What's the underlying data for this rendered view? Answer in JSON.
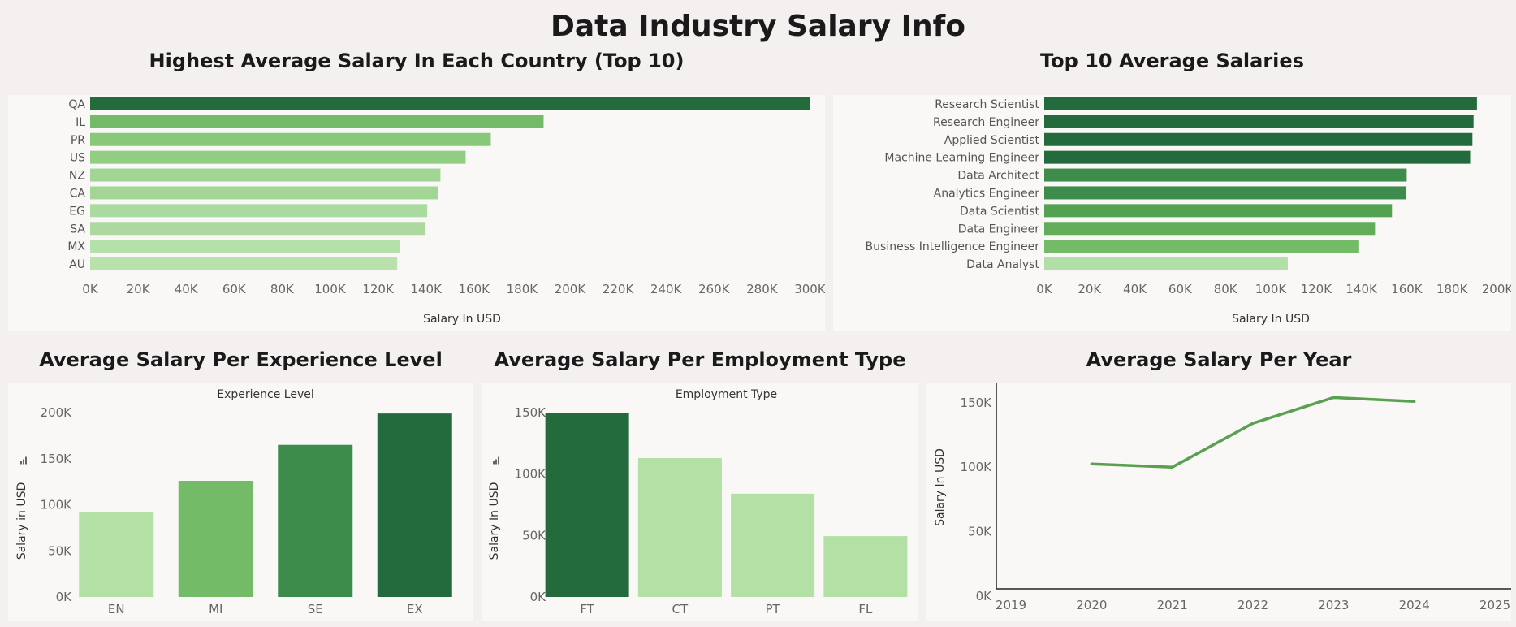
{
  "page": {
    "title": "Data Industry Salary Info"
  },
  "chart_data": [
    {
      "id": "country",
      "type": "bar",
      "orientation": "horizontal",
      "title": "Highest Average Salary In Each Country (Top 10)",
      "xlabel": "Salary In USD",
      "ylabel": "",
      "categories": [
        "QA",
        "IL",
        "PR",
        "US",
        "NZ",
        "CA",
        "EG",
        "SA",
        "MX",
        "AU"
      ],
      "values": [
        300000,
        189000,
        167000,
        156500,
        146000,
        145000,
        140500,
        139500,
        129000,
        128000
      ],
      "xlim": [
        0,
        310000
      ],
      "ticks": [
        "0K",
        "20K",
        "40K",
        "60K",
        "80K",
        "100K",
        "120K",
        "140K",
        "160K",
        "180K",
        "200K",
        "220K",
        "240K",
        "260K",
        "280K",
        "300K"
      ],
      "tick_values": [
        0,
        20000,
        40000,
        60000,
        80000,
        100000,
        120000,
        140000,
        160000,
        180000,
        200000,
        220000,
        240000,
        260000,
        280000,
        300000
      ],
      "colors": [
        "#236b3d",
        "#74bb67",
        "#88c879",
        "#92cd83",
        "#a1d594",
        "#a3d696",
        "#abdaa0",
        "#add9a1",
        "#b6e0aa",
        "#b8e1ab"
      ]
    },
    {
      "id": "jobs",
      "type": "bar",
      "orientation": "horizontal",
      "title": "Top 10 Average Salaries",
      "xlabel": "Salary In USD",
      "ylabel": "",
      "categories": [
        "Research Scientist",
        "Research Engineer",
        "Applied Scientist",
        "Machine Learning Engineer",
        "Data Architect",
        "Analytics Engineer",
        "Data Scientist",
        "Data Engineer",
        "Business Intelligence Engineer",
        "Data Analyst"
      ],
      "values": [
        191000,
        189500,
        189000,
        188000,
        160000,
        159500,
        153500,
        146000,
        139000,
        107500
      ],
      "xlim": [
        0,
        200000
      ],
      "ticks": [
        "0K",
        "20K",
        "40K",
        "60K",
        "80K",
        "100K",
        "120K",
        "140K",
        "160K",
        "180K",
        "200K"
      ],
      "tick_values": [
        0,
        20000,
        40000,
        60000,
        80000,
        100000,
        120000,
        140000,
        160000,
        180000,
        200000
      ],
      "colors": [
        "#236b3d",
        "#236b3d",
        "#236b3d",
        "#236b3d",
        "#3e8c4b",
        "#3e8c4b",
        "#53a252",
        "#62ad59",
        "#74bb67",
        "#b2dfa7"
      ]
    },
    {
      "id": "experience",
      "type": "bar",
      "orientation": "vertical",
      "title": "Average Salary Per Experience Level",
      "header": "Experience Level",
      "xlabel": "",
      "ylabel": "Salary in USD",
      "categories": [
        "EN",
        "MI",
        "SE",
        "EX"
      ],
      "values": [
        92000,
        126000,
        165000,
        199000
      ],
      "ylim": [
        0,
        200000
      ],
      "ticks": [
        "0K",
        "50K",
        "100K",
        "150K",
        "200K"
      ],
      "tick_values": [
        0,
        50000,
        100000,
        150000,
        200000
      ],
      "colors": [
        "#b3e0a5",
        "#74bb67",
        "#3e8c4b",
        "#236b3d"
      ]
    },
    {
      "id": "employment",
      "type": "bar",
      "orientation": "vertical",
      "title": "Average Salary Per Employment Type",
      "header": "Employment Type",
      "xlabel": "",
      "ylabel": "Salary In USD",
      "categories": [
        "FT",
        "CT",
        "PT",
        "FL"
      ],
      "values": [
        149500,
        113000,
        84000,
        49500
      ],
      "ylim": [
        0,
        150000
      ],
      "ticks": [
        "0K",
        "50K",
        "100K",
        "150K"
      ],
      "tick_values": [
        0,
        50000,
        100000,
        150000
      ],
      "colors": [
        "#236b3d",
        "#b3e0a5",
        "#b3e0a5",
        "#b3e0a5"
      ]
    },
    {
      "id": "year",
      "type": "line",
      "title": "Average Salary Per Year",
      "xlabel": "",
      "ylabel": "Salary In USD",
      "x": [
        2020,
        2021,
        2022,
        2023,
        2024
      ],
      "values": [
        102500,
        100000,
        134000,
        154000,
        151000
      ],
      "xlim": [
        2019,
        2025
      ],
      "ylim": [
        0,
        165000
      ],
      "x_ticks": [
        "2019",
        "2020",
        "2021",
        "2022",
        "2023",
        "2024",
        "2025"
      ],
      "x_tick_values": [
        2019,
        2020,
        2021,
        2022,
        2023,
        2024,
        2025
      ],
      "ticks": [
        "0K",
        "50K",
        "100K",
        "150K"
      ],
      "tick_values": [
        0,
        50000,
        100000,
        150000
      ],
      "line_color": "#59a14f"
    }
  ]
}
